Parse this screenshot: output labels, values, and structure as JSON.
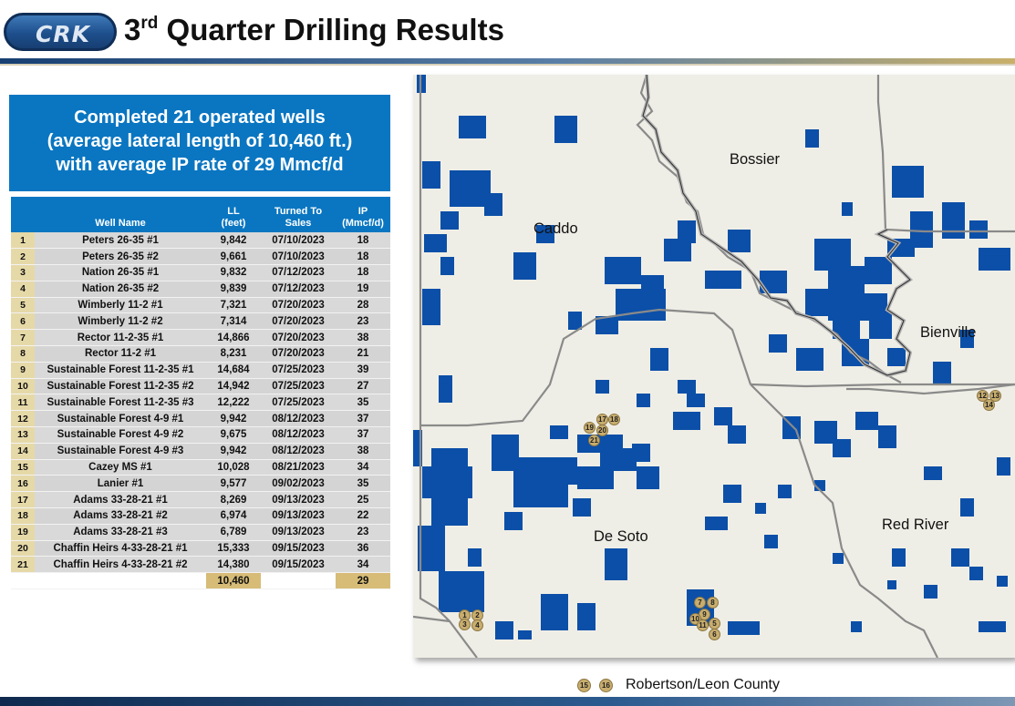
{
  "header": {
    "logo_text": "CRK",
    "title_prefix": "3",
    "title_sup": "rd",
    "title_rest": " Quarter Drilling Results"
  },
  "callout": {
    "line1": "Completed 21 operated wells",
    "line2": "(average lateral length of 10,460 ft.)",
    "line3": "with average IP rate of 29 Mmcf/d"
  },
  "table": {
    "headers": {
      "well_name": "Well Name",
      "ll": "LL",
      "ll_unit": "(feet)",
      "turned_line1": "Turned To",
      "turned_line2": "Sales",
      "ip": "IP",
      "ip_unit": "(Mmcf/d)"
    },
    "rows": [
      {
        "n": "1",
        "name": "Peters 26-35 #1",
        "ll": "9,842",
        "date": "07/10/2023",
        "ip": "18"
      },
      {
        "n": "2",
        "name": "Peters 26-35 #2",
        "ll": "9,661",
        "date": "07/10/2023",
        "ip": "18"
      },
      {
        "n": "3",
        "name": "Nation 26-35 #1",
        "ll": "9,832",
        "date": "07/12/2023",
        "ip": "18"
      },
      {
        "n": "4",
        "name": "Nation 26-35 #2",
        "ll": "9,839",
        "date": "07/12/2023",
        "ip": "19"
      },
      {
        "n": "5",
        "name": "Wimberly 11-2 #1",
        "ll": "7,321",
        "date": "07/20/2023",
        "ip": "28"
      },
      {
        "n": "6",
        "name": "Wimberly 11-2 #2",
        "ll": "7,314",
        "date": "07/20/2023",
        "ip": "23"
      },
      {
        "n": "7",
        "name": "Rector 11-2-35 #1",
        "ll": "14,866",
        "date": "07/20/2023",
        "ip": "38"
      },
      {
        "n": "8",
        "name": "Rector 11-2 #1",
        "ll": "8,231",
        "date": "07/20/2023",
        "ip": "21"
      },
      {
        "n": "9",
        "name": "Sustainable Forest 11-2-35 #1",
        "ll": "14,684",
        "date": "07/25/2023",
        "ip": "39"
      },
      {
        "n": "10",
        "name": "Sustainable Forest 11-2-35 #2",
        "ll": "14,942",
        "date": "07/25/2023",
        "ip": "27"
      },
      {
        "n": "11",
        "name": "Sustainable Forest 11-2-35 #3",
        "ll": "12,222",
        "date": "07/25/2023",
        "ip": "35"
      },
      {
        "n": "12",
        "name": "Sustainable Forest 4-9 #1",
        "ll": "9,942",
        "date": "08/12/2023",
        "ip": "37"
      },
      {
        "n": "13",
        "name": "Sustainable Forest 4-9 #2",
        "ll": "9,675",
        "date": "08/12/2023",
        "ip": "37"
      },
      {
        "n": "14",
        "name": "Sustainable Forest 4-9 #3",
        "ll": "9,942",
        "date": "08/12/2023",
        "ip": "38"
      },
      {
        "n": "15",
        "name": "Cazey MS #1",
        "ll": "10,028",
        "date": "08/21/2023",
        "ip": "34"
      },
      {
        "n": "16",
        "name": "Lanier #1",
        "ll": "9,577",
        "date": "09/02/2023",
        "ip": "35"
      },
      {
        "n": "17",
        "name": "Adams 33-28-21 #1",
        "ll": "8,269",
        "date": "09/13/2023",
        "ip": "25"
      },
      {
        "n": "18",
        "name": "Adams 33-28-21 #2",
        "ll": "6,974",
        "date": "09/13/2023",
        "ip": "22"
      },
      {
        "n": "19",
        "name": "Adams 33-28-21 #3",
        "ll": "6,789",
        "date": "09/13/2023",
        "ip": "23"
      },
      {
        "n": "20",
        "name": "Chaffin Heirs 4-33-28-21 #1",
        "ll": "15,333",
        "date": "09/15/2023",
        "ip": "36"
      },
      {
        "n": "21",
        "name": "Chaffin Heirs 4-33-28-21 #2",
        "ll": "14,380",
        "date": "09/15/2023",
        "ip": "34"
      }
    ],
    "totals": {
      "ll": "10,460",
      "ip": "29"
    }
  },
  "map": {
    "counties": {
      "bossier": "Bossier",
      "caddo": "Caddo",
      "bienville": "Bienville",
      "de_soto": "De Soto",
      "red_river": "Red River"
    },
    "well_badges": [
      "1",
      "2",
      "3",
      "4",
      "5",
      "6",
      "7",
      "8",
      "9",
      "10",
      "11",
      "12",
      "13",
      "14",
      "17",
      "18",
      "19",
      "20",
      "21"
    ],
    "colors": {
      "acreage": "#0b4fa8",
      "background": "#efeee6",
      "badge": "#c8ad6e"
    }
  },
  "legend": {
    "badge_a": "15",
    "badge_b": "16",
    "label": "Robertson/Leon County"
  }
}
